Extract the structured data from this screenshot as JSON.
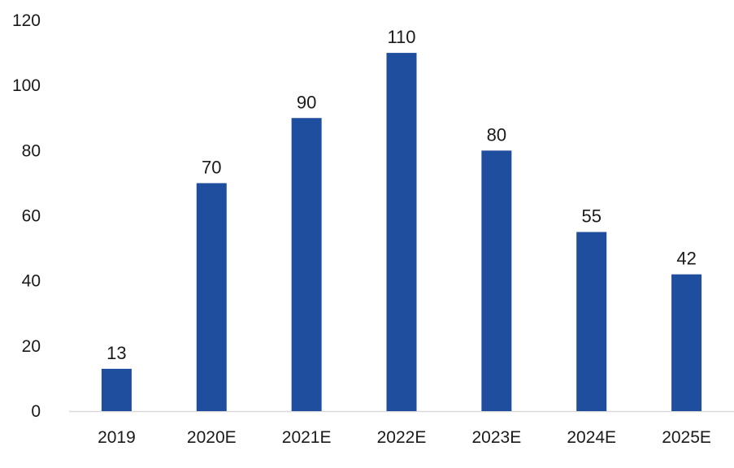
{
  "chart_data": {
    "type": "bar",
    "categories": [
      "2019",
      "2020E",
      "2021E",
      "2022E",
      "2023E",
      "2024E",
      "2025E"
    ],
    "values": [
      13,
      70,
      90,
      110,
      80,
      55,
      42
    ],
    "title": "",
    "xlabel": "",
    "ylabel": "",
    "ylim": [
      0,
      120
    ],
    "yticks": [
      0,
      20,
      40,
      60,
      80,
      100,
      120
    ],
    "data_labels": [
      "13",
      "70",
      "90",
      "110",
      "80",
      "55",
      "42"
    ],
    "grid": false,
    "legend": "none",
    "bar_color": "#1f4e9e",
    "axis_color": "#d9d9d9"
  }
}
